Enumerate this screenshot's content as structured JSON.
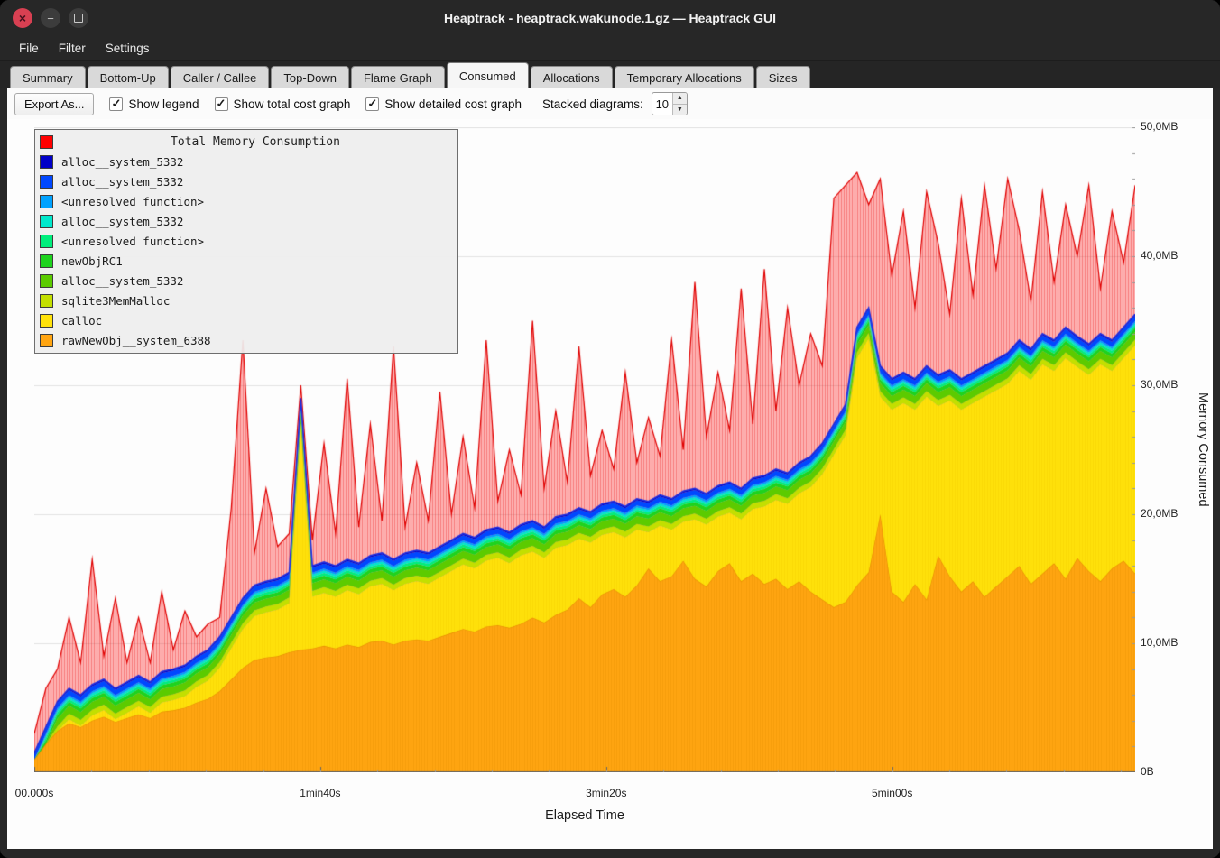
{
  "window": {
    "title": "Heaptrack - heaptrack.wakunode.1.gz — Heaptrack GUI"
  },
  "menubar": {
    "items": [
      "File",
      "Filter",
      "Settings"
    ]
  },
  "tabs": {
    "items": [
      "Summary",
      "Bottom-Up",
      "Caller / Callee",
      "Top-Down",
      "Flame Graph",
      "Consumed",
      "Allocations",
      "Temporary Allocations",
      "Sizes"
    ],
    "active": "Consumed"
  },
  "toolbar": {
    "export_label": "Export As...",
    "checkboxes": [
      {
        "label": "Show legend",
        "checked": true
      },
      {
        "label": "Show total cost graph",
        "checked": true
      },
      {
        "label": "Show detailed cost graph",
        "checked": true
      }
    ],
    "stacked_label": "Stacked diagrams:",
    "stacked_value": "10"
  },
  "legend": {
    "title": "Total Memory Consumption",
    "title_color": "#ff0000",
    "items": [
      {
        "label": "alloc__system_5332",
        "color": "#0000c8"
      },
      {
        "label": "alloc__system_5332",
        "color": "#0048ff"
      },
      {
        "label": "<unresolved function>",
        "color": "#00a2ff"
      },
      {
        "label": "alloc__system_5332",
        "color": "#00e8cc"
      },
      {
        "label": "<unresolved function>",
        "color": "#00ee7c"
      },
      {
        "label": "newObjRC1",
        "color": "#1ed31e"
      },
      {
        "label": "alloc__system_5332",
        "color": "#5ccb00"
      },
      {
        "label": "sqlite3MemMalloc",
        "color": "#c3df00"
      },
      {
        "label": "calloc",
        "color": "#ffe20a"
      },
      {
        "label": "rawNewObj__system_6388",
        "color": "#ffa511"
      }
    ]
  },
  "chart_data": {
    "type": "area",
    "title": "Total Memory Consumption",
    "xlabel": "Elapsed Time",
    "ylabel": "Memory Consumed",
    "x_ticks": [
      "00.000s",
      "1min40s",
      "3min20s",
      "5min00s"
    ],
    "x_tick_seconds": [
      0,
      100,
      200,
      300
    ],
    "x_max_seconds": 385,
    "y_ticks": [
      "0B",
      "10,0MB",
      "20,0MB",
      "30,0MB",
      "40,0MB",
      "50,0MB"
    ],
    "y_max_mb": 50,
    "legend_position": "top-left",
    "grid": "horizontal",
    "colors": {
      "total_fill": "rgba(255,40,40,0.35)",
      "total_hatch": "rgba(235,20,20,0.35)",
      "total_line": "#e00000",
      "orange": "#ffa511",
      "orange_line": "#e88f00",
      "orange_hatch": "rgba(225,140,0,0.30)",
      "yellow": "#ffe20a",
      "yellow_hatch": "rgba(235,190,0,0.25)",
      "stack_line": "#1f2fe0"
    },
    "total_mb": [
      3.0,
      6.5,
      8.0,
      12.0,
      8.5,
      16.5,
      9.0,
      13.5,
      8.5,
      12.0,
      8.5,
      14.0,
      9.5,
      12.5,
      10.5,
      11.5,
      12.0,
      20.5,
      33.5,
      17.0,
      22.0,
      17.5,
      18.5,
      30.0,
      18.0,
      25.5,
      18.5,
      30.5,
      19.0,
      27.0,
      19.5,
      33.0,
      19.0,
      24.0,
      19.5,
      29.5,
      20.0,
      26.0,
      20.5,
      33.5,
      21.0,
      25.0,
      21.5,
      35.0,
      22.0,
      28.0,
      22.5,
      33.0,
      23.0,
      26.5,
      23.5,
      31.0,
      24.0,
      27.5,
      24.5,
      33.5,
      25.0,
      38.0,
      26.0,
      31.0,
      26.5,
      37.5,
      27.0,
      39.0,
      28.0,
      36.0,
      30.0,
      34.0,
      31.5,
      44.5,
      45.5,
      46.5,
      44.0,
      46.0,
      38.5,
      43.5,
      36.0,
      45.0,
      41.0,
      35.5,
      44.5,
      37.0,
      45.5,
      39.0,
      46.0,
      42.0,
      36.5,
      45.0,
      38.0,
      44.0,
      40.0,
      45.5,
      37.5,
      43.5,
      39.5,
      45.5
    ],
    "stack_top_mb": [
      1.5,
      3.5,
      5.5,
      6.5,
      6.0,
      6.8,
      7.2,
      6.5,
      7.0,
      7.5,
      7.0,
      7.8,
      8.0,
      8.3,
      9.0,
      9.5,
      10.5,
      12.0,
      13.5,
      14.5,
      14.8,
      15.0,
      15.5,
      29.0,
      16.0,
      16.3,
      16.0,
      16.5,
      16.2,
      16.8,
      17.0,
      16.5,
      17.0,
      17.2,
      17.0,
      17.5,
      18.0,
      18.5,
      18.2,
      18.8,
      19.0,
      18.6,
      19.2,
      19.5,
      19.0,
      19.8,
      20.0,
      20.5,
      20.2,
      20.8,
      21.0,
      20.6,
      21.2,
      21.0,
      21.5,
      21.2,
      21.8,
      22.0,
      21.6,
      22.2,
      22.5,
      22.0,
      22.8,
      23.0,
      23.5,
      23.2,
      24.0,
      24.5,
      25.5,
      27.0,
      28.5,
      34.5,
      36.0,
      31.5,
      30.5,
      31.0,
      30.5,
      31.5,
      30.8,
      31.2,
      30.5,
      31.0,
      31.5,
      32.0,
      32.5,
      33.5,
      32.8,
      34.0,
      33.5,
      34.5,
      33.8,
      33.2,
      34.0,
      33.5,
      34.5,
      35.5
    ],
    "orange_top_mb": [
      1.0,
      2.2,
      3.2,
      3.8,
      3.5,
      4.0,
      4.3,
      3.9,
      4.2,
      4.5,
      4.2,
      4.7,
      4.8,
      5.0,
      5.4,
      5.7,
      6.3,
      7.2,
      8.1,
      8.7,
      8.9,
      9.0,
      9.3,
      9.5,
      9.6,
      9.8,
      9.6,
      9.9,
      9.7,
      10.1,
      10.2,
      9.9,
      10.2,
      10.3,
      10.2,
      10.5,
      10.8,
      11.1,
      10.9,
      11.3,
      11.4,
      11.2,
      11.5,
      12.0,
      11.6,
      12.2,
      12.6,
      13.5,
      12.8,
      13.8,
      14.2,
      13.6,
      14.5,
      15.8,
      14.8,
      15.2,
      16.4,
      15.0,
      14.4,
      15.6,
      16.2,
      14.8,
      15.4,
      14.6,
      15.0,
      14.2,
      14.8,
      14.0,
      13.4,
      12.8,
      13.2,
      14.5,
      15.5,
      20.0,
      14.0,
      13.2,
      14.6,
      13.4,
      16.8,
      15.2,
      14.0,
      14.8,
      13.6,
      14.4,
      15.2,
      16.0,
      14.6,
      15.4,
      16.2,
      15.0,
      16.6,
      15.6,
      14.8,
      15.8,
      16.4,
      15.4
    ],
    "thin_bands_top_to_bottom": [
      {
        "name": "alloc__system_5332",
        "color": "#0000c8",
        "mb": 0.12
      },
      {
        "name": "alloc__system_5332",
        "color": "#0048ff",
        "mb": 0.4
      },
      {
        "name": "<unresolved function>",
        "color": "#00a2ff",
        "mb": 0.15
      },
      {
        "name": "alloc__system_5332",
        "color": "#00e8cc",
        "mb": 0.18
      },
      {
        "name": "<unresolved function>",
        "color": "#00ee7c",
        "mb": 0.2
      },
      {
        "name": "newObjRC1",
        "color": "#1ed31e",
        "mb": 0.3
      },
      {
        "name": "alloc__system_5332",
        "color": "#5ccb00",
        "mb": 0.6
      },
      {
        "name": "sqlite3MemMalloc",
        "color": "#c3df00",
        "mb": 0.45
      }
    ]
  }
}
